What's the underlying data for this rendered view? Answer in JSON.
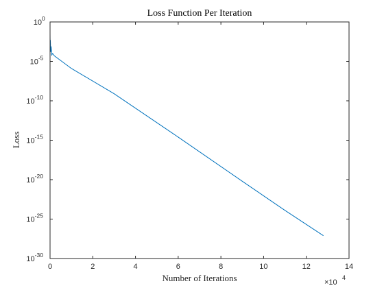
{
  "chart_data": {
    "type": "line",
    "title": "Loss Function Per Iteration",
    "xlabel": "Number of Iterations",
    "ylabel": "Loss",
    "x_multiplier_label": {
      "base": "×10",
      "exponent": "4"
    },
    "y_scale": "log",
    "xlim": [
      0,
      140000
    ],
    "ylim_log10": [
      -30,
      0
    ],
    "x_ticks": [
      {
        "value": 0,
        "label": "0"
      },
      {
        "value": 20000,
        "label": "2"
      },
      {
        "value": 40000,
        "label": "4"
      },
      {
        "value": 60000,
        "label": "6"
      },
      {
        "value": 80000,
        "label": "8"
      },
      {
        "value": 100000,
        "label": "10"
      },
      {
        "value": 120000,
        "label": "12"
      },
      {
        "value": 140000,
        "label": "14"
      }
    ],
    "y_ticks": [
      {
        "log10": 0,
        "base": "10",
        "exponent": "0"
      },
      {
        "log10": -5,
        "base": "10",
        "exponent": "-5"
      },
      {
        "log10": -10,
        "base": "10",
        "exponent": "-10"
      },
      {
        "log10": -15,
        "base": "10",
        "exponent": "-15"
      },
      {
        "log10": -20,
        "base": "10",
        "exponent": "-20"
      },
      {
        "log10": -25,
        "base": "10",
        "exponent": "-25"
      },
      {
        "log10": -30,
        "base": "10",
        "exponent": "-30"
      }
    ],
    "series": [
      {
        "color": "#0072bd",
        "points": [
          {
            "x": 0,
            "log10_loss": -1.5
          },
          {
            "x": 50,
            "log10_loss": -3.0
          },
          {
            "x": 150,
            "log10_loss": -2.3
          },
          {
            "x": 300,
            "log10_loss": -3.8
          },
          {
            "x": 500,
            "log10_loss": -3.1
          },
          {
            "x": 800,
            "log10_loss": -4.2
          },
          {
            "x": 1200,
            "log10_loss": -4.0
          },
          {
            "x": 2000,
            "log10_loss": -4.3
          },
          {
            "x": 10000,
            "log10_loss": -5.9
          },
          {
            "x": 30000,
            "log10_loss": -9.1
          },
          {
            "x": 60000,
            "log10_loss": -14.6
          },
          {
            "x": 90000,
            "log10_loss": -20.2
          },
          {
            "x": 110000,
            "log10_loss": -23.9
          },
          {
            "x": 128000,
            "log10_loss": -27.1
          }
        ]
      }
    ],
    "grid": false,
    "legend": "none"
  }
}
